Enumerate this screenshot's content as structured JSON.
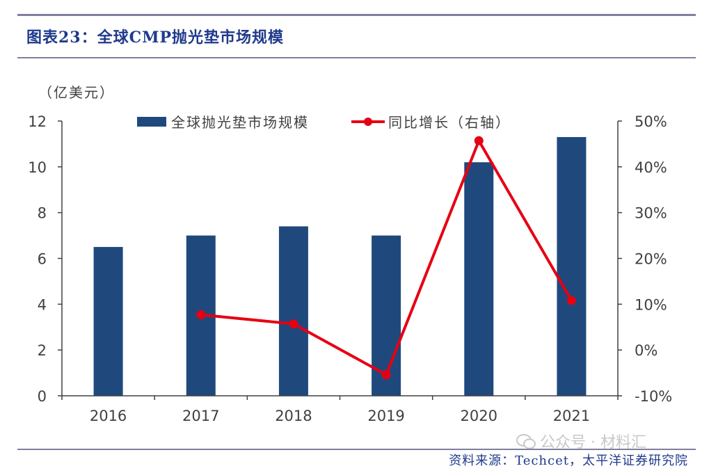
{
  "figure": {
    "title": "图表23：全球CMP抛光垫市场规模",
    "source": "资料来源：Techcet，太平洋证券研究院",
    "watermark": "公众号 · 材料汇",
    "watermark_icon": "wechat-icon"
  },
  "colors": {
    "bar": "#1f497d",
    "line": "#e60012",
    "header_rule": "#7f7f9f",
    "title": "#1f3a8c",
    "axis_text": "#404040"
  },
  "chart_data": {
    "type": "bar",
    "title": "",
    "categories": [
      "2016",
      "2017",
      "2018",
      "2019",
      "2020",
      "2021"
    ],
    "series": [
      {
        "name": "全球抛光垫市场规模",
        "type": "bar",
        "axis": "left",
        "values": [
          6.5,
          7.0,
          7.4,
          7.0,
          10.2,
          11.3
        ]
      },
      {
        "name": "同比增长（右轴）",
        "type": "line",
        "axis": "right",
        "values": [
          null,
          7.7,
          5.7,
          -5.4,
          45.7,
          10.8
        ]
      }
    ],
    "ylabel": "（亿美元）",
    "ylim": [
      0,
      12
    ],
    "yticks": [
      "0",
      "2",
      "4",
      "6",
      "8",
      "10",
      "12"
    ],
    "y2lim": [
      -10,
      50
    ],
    "y2ticks": [
      "-10%",
      "0%",
      "10%",
      "20%",
      "30%",
      "40%",
      "50%"
    ],
    "legend": "top-center",
    "grid": false
  }
}
